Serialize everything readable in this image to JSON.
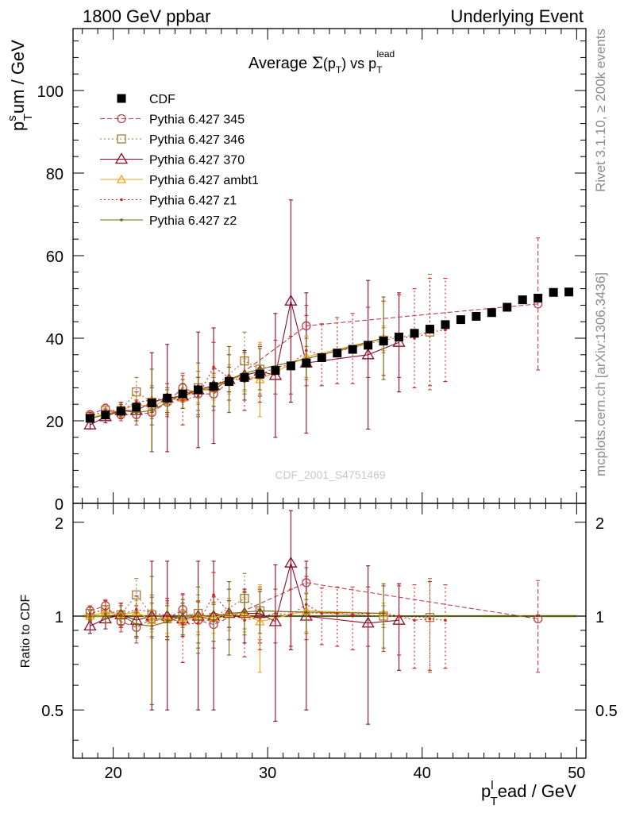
{
  "header": {
    "left": "1800 GeV ppbar",
    "right": "Underlying Event"
  },
  "side_text": {
    "rivet": "Rivet 3.1.10, ≥ 200k events",
    "mcplots": "mcplots.cern.ch [arXiv:1306.3436]"
  },
  "watermark": "CDF_2001_S4751469",
  "colors": {
    "cdf": "#000000",
    "p345": "#bf3f50",
    "p346": "#a37a3c",
    "p370": "#8b0d2a",
    "ambt1": "#f5a11b",
    "z1": "#d32020",
    "z2": "#6f6a0b",
    "mc_band": "#ccee66"
  },
  "chart_data": [
    {
      "type": "scatter",
      "title": "Average Σ(p_T) vs p_T^lead",
      "ylabel": "p_T^sum / GeV",
      "xlim": [
        17.4,
        50.6
      ],
      "ylim": [
        0,
        115
      ],
      "yticks": [
        0,
        20,
        40,
        60,
        80,
        100
      ],
      "legend_position": "top-left",
      "series": [
        {
          "name": "CDF",
          "key": "cdf",
          "style": "filled-square",
          "line": "none",
          "x": [
            18.5,
            19.5,
            20.5,
            21.5,
            22.5,
            23.5,
            24.5,
            25.5,
            26.5,
            27.5,
            28.5,
            29.5,
            30.5,
            31.5,
            32.5,
            33.5,
            34.5,
            35.5,
            36.5,
            37.5,
            38.5,
            39.5,
            40.5,
            41.5,
            42.5,
            43.5,
            44.5,
            45.5,
            46.5,
            47.5,
            48.5,
            49.5
          ],
          "y": [
            20.6,
            21.4,
            22.3,
            23.3,
            24.3,
            25.5,
            26.5,
            27.5,
            28.3,
            29.5,
            30.5,
            31.3,
            32.2,
            33.3,
            34.0,
            35.3,
            36.4,
            37.3,
            38.3,
            39.3,
            40.3,
            41.2,
            42.2,
            43.3,
            44.5,
            45.3,
            46.2,
            47.5,
            49.3,
            49.7,
            51.1,
            51.2
          ],
          "err": [
            0.3,
            0.3,
            0.3,
            0.3,
            0.3,
            0.3,
            0.3,
            0.3,
            0.3,
            0.3,
            0.3,
            0.3,
            0.3,
            0.3,
            0.3,
            0.3,
            0.3,
            0.3,
            0.3,
            0.3,
            0.3,
            0.3,
            0.4,
            0.4,
            0.4,
            0.4,
            0.5,
            0.5,
            0.5,
            0.5,
            0.6,
            0.6
          ]
        },
        {
          "name": "Pythia 6.427 345",
          "key": "p345",
          "style": "open-circle",
          "line": "dashed",
          "x": [
            18.5,
            19.5,
            20.5,
            21.5,
            22.5,
            23.5,
            24.5,
            25.5,
            26.5,
            32.5,
            47.5
          ],
          "y": [
            21.5,
            23.0,
            21.5,
            21.5,
            22.0,
            24.5,
            28.0,
            26.5,
            26.5,
            43.0,
            48.3
          ],
          "err": [
            0.8,
            1.0,
            1.5,
            2.5,
            3.0,
            3.5,
            3.5,
            4.0,
            4.0,
            5.0,
            16.0
          ]
        },
        {
          "name": "Pythia 6.427 346",
          "key": "p346",
          "style": "open-square",
          "line": "dotted",
          "x": [
            18.5,
            19.5,
            20.5,
            21.5,
            22.5,
            23.5,
            24.5,
            25.5,
            26.5,
            28.5,
            29.5,
            37.5,
            40.5
          ],
          "y": [
            21.0,
            22.5,
            22.5,
            27.0,
            24.5,
            25.0,
            26.5,
            28.0,
            28.0,
            34.5,
            32.5,
            39.5,
            41.5
          ],
          "err": [
            1.0,
            1.5,
            2.0,
            3.5,
            4.0,
            3.0,
            3.5,
            4.0,
            4.5,
            7.0,
            6.0,
            3.0,
            14.0
          ]
        },
        {
          "name": "Pythia 6.427 370",
          "key": "p370",
          "style": "open-triangle",
          "line": "solid",
          "x": [
            18.5,
            19.5,
            20.5,
            21.5,
            22.5,
            23.5,
            24.5,
            25.5,
            26.5,
            27.5,
            28.5,
            29.5,
            30.5,
            31.5,
            32.5,
            36.5,
            38.5
          ],
          "y": [
            19.0,
            21.0,
            22.5,
            22.5,
            24.5,
            25.5,
            26.0,
            27.5,
            28.5,
            30.0,
            31.0,
            32.0,
            31.0,
            49.0,
            34.0,
            36.0,
            39.0
          ],
          "err": [
            1.0,
            1.5,
            2.0,
            2.5,
            12.0,
            13.0,
            3.0,
            14.0,
            14.0,
            3.0,
            6.0,
            6.0,
            15.0,
            24.5,
            17.0,
            18.0,
            12.0
          ]
        },
        {
          "name": "Pythia 6.427 ambt1",
          "key": "ambt1",
          "style": "open-triangle-small",
          "line": "solid",
          "x": [
            18.5,
            19.5,
            20.5,
            21.5,
            22.5,
            23.5,
            24.5,
            25.5,
            26.5,
            27.5,
            28.5,
            29.5,
            32.5,
            37.5
          ],
          "y": [
            20.5,
            22.0,
            22.5,
            24.0,
            23.5,
            25.0,
            25.5,
            27.5,
            28.0,
            30.0,
            31.0,
            30.0,
            35.5,
            40.0
          ],
          "err": [
            0.8,
            1.0,
            1.5,
            2.0,
            2.0,
            2.5,
            2.5,
            3.0,
            3.0,
            3.5,
            4.0,
            9.0,
            5.0,
            3.0
          ]
        },
        {
          "name": "Pythia 6.427 z1",
          "key": "z1",
          "style": "dot",
          "line": "dotted",
          "x": [
            18.5,
            19.5,
            20.5,
            21.5,
            22.5,
            23.5,
            24.5,
            25.5,
            26.5,
            27.5,
            28.5,
            29.5,
            30.5,
            31.5,
            32.5,
            33.5,
            34.5,
            35.5,
            36.5,
            37.5,
            38.5,
            39.5,
            40.5,
            41.5
          ],
          "y": [
            21.0,
            22.5,
            22.5,
            24.5,
            25.0,
            25.5,
            25.0,
            26.0,
            33.0,
            30.5,
            29.5,
            31.0,
            33.0,
            33.5,
            37.0,
            36.0,
            37.0,
            37.5,
            39.0,
            40.0,
            40.5,
            40.0,
            41.5,
            42.0
          ],
          "err": [
            1.0,
            1.5,
            2.0,
            2.5,
            3.0,
            3.5,
            6.0,
            4.5,
            6.0,
            5.5,
            7.0,
            6.5,
            6.5,
            7.0,
            8.5,
            7.5,
            8.0,
            8.5,
            8.5,
            9.0,
            10.0,
            12.0,
            13.0,
            12.5
          ]
        },
        {
          "name": "Pythia 6.427 z2",
          "key": "z2",
          "style": "dot",
          "line": "solid",
          "x": [
            18.5,
            19.5,
            20.5,
            21.5,
            22.5,
            23.5,
            24.5,
            25.5,
            26.5,
            27.5,
            28.5,
            29.5,
            32.5,
            37.5
          ],
          "y": [
            20.5,
            21.5,
            22.5,
            22.0,
            22.5,
            24.5,
            26.5,
            27.5,
            27.5,
            30.0,
            31.5,
            32.5,
            35.0,
            40.0
          ],
          "err": [
            0.8,
            1.0,
            1.5,
            2.0,
            10.0,
            3.0,
            3.5,
            6.5,
            4.0,
            8.0,
            5.0,
            5.0,
            5.0,
            10.0
          ]
        }
      ]
    },
    {
      "type": "scatter",
      "ylabel": "Ratio to CDF",
      "xlabel": "p_T^lead / GeV",
      "xlim": [
        17.4,
        50.6
      ],
      "xticks": [
        20,
        30,
        40,
        50
      ],
      "ylim": [
        0.35,
        2.3
      ],
      "yticks": [
        0.5,
        1,
        2
      ],
      "yscale": "log",
      "series": [
        {
          "key": "p345",
          "x": [
            18.5,
            19.5,
            20.5,
            21.5,
            22.5,
            23.5,
            24.5,
            25.5,
            26.5,
            32.5,
            47.5
          ],
          "y": [
            1.04,
            1.08,
            0.96,
            0.92,
            0.98,
            0.98,
            1.05,
            0.97,
            0.94,
            1.28,
            0.98
          ],
          "err": [
            0.04,
            0.05,
            0.07,
            0.1,
            0.12,
            0.14,
            0.13,
            0.15,
            0.15,
            0.15,
            0.32
          ]
        },
        {
          "key": "p346",
          "x": [
            18.5,
            19.5,
            20.5,
            21.5,
            22.5,
            23.5,
            24.5,
            25.5,
            26.5,
            28.5,
            29.5,
            37.5,
            40.5
          ],
          "y": [
            1.02,
            1.05,
            1.01,
            1.17,
            1.01,
            0.98,
            1.0,
            1.02,
            0.99,
            1.14,
            1.04,
            1.0,
            0.99
          ],
          "err": [
            0.05,
            0.07,
            0.09,
            0.15,
            0.16,
            0.12,
            0.13,
            0.15,
            0.16,
            0.23,
            0.2,
            0.08,
            0.33
          ]
        },
        {
          "key": "p370",
          "x": [
            18.5,
            19.5,
            20.5,
            21.5,
            22.5,
            23.5,
            24.5,
            25.5,
            26.5,
            27.5,
            28.5,
            29.5,
            30.5,
            31.5,
            32.5,
            36.5,
            38.5
          ],
          "y": [
            0.93,
            0.98,
            1.01,
            0.97,
            1.0,
            1.0,
            0.98,
            1.0,
            1.0,
            1.02,
            1.02,
            1.02,
            0.96,
            1.48,
            1.0,
            0.95,
            0.97
          ],
          "err": [
            0.05,
            0.07,
            0.09,
            0.11,
            0.5,
            0.5,
            0.12,
            0.5,
            0.5,
            0.1,
            0.2,
            0.2,
            0.5,
            0.7,
            0.5,
            0.5,
            0.3
          ]
        },
        {
          "key": "ambt1",
          "x": [
            18.5,
            19.5,
            20.5,
            21.5,
            22.5,
            23.5,
            24.5,
            25.5,
            26.5,
            27.5,
            28.5,
            29.5,
            32.5,
            37.5
          ],
          "y": [
            1.0,
            1.03,
            1.01,
            1.03,
            0.97,
            0.98,
            0.96,
            1.0,
            0.99,
            1.02,
            1.02,
            0.96,
            1.04,
            1.02
          ],
          "err": [
            0.04,
            0.05,
            0.07,
            0.09,
            0.08,
            0.1,
            0.09,
            0.11,
            0.11,
            0.12,
            0.13,
            0.3,
            0.15,
            0.08
          ]
        },
        {
          "key": "z1",
          "x": [
            18.5,
            19.5,
            20.5,
            21.5,
            22.5,
            23.5,
            24.5,
            25.5,
            26.5,
            27.5,
            28.5,
            29.5,
            30.5,
            31.5,
            32.5,
            33.5,
            34.5,
            35.5,
            36.5,
            37.5,
            38.5,
            39.5,
            40.5,
            41.5
          ],
          "y": [
            1.02,
            1.05,
            1.01,
            1.05,
            1.03,
            1.0,
            0.94,
            0.95,
            1.17,
            1.03,
            0.97,
            0.99,
            1.02,
            1.01,
            1.09,
            1.02,
            1.02,
            1.01,
            1.02,
            1.02,
            1.0,
            0.97,
            0.98,
            0.97
          ],
          "err": [
            0.05,
            0.07,
            0.09,
            0.11,
            0.12,
            0.14,
            0.23,
            0.16,
            0.21,
            0.19,
            0.23,
            0.21,
            0.2,
            0.21,
            0.25,
            0.21,
            0.22,
            0.23,
            0.22,
            0.23,
            0.25,
            0.29,
            0.31,
            0.29
          ]
        },
        {
          "key": "z2",
          "x": [
            18.5,
            19.5,
            20.5,
            21.5,
            22.5,
            23.5,
            24.5,
            25.5,
            26.5,
            27.5,
            28.5,
            29.5,
            32.5,
            37.5
          ],
          "y": [
            1.0,
            1.0,
            1.01,
            0.94,
            0.93,
            0.96,
            1.0,
            1.0,
            0.97,
            1.02,
            1.03,
            1.04,
            1.03,
            1.02
          ],
          "err": [
            0.04,
            0.05,
            0.07,
            0.09,
            0.41,
            0.12,
            0.13,
            0.24,
            0.14,
            0.27,
            0.16,
            0.16,
            0.15,
            0.25
          ]
        }
      ]
    }
  ]
}
